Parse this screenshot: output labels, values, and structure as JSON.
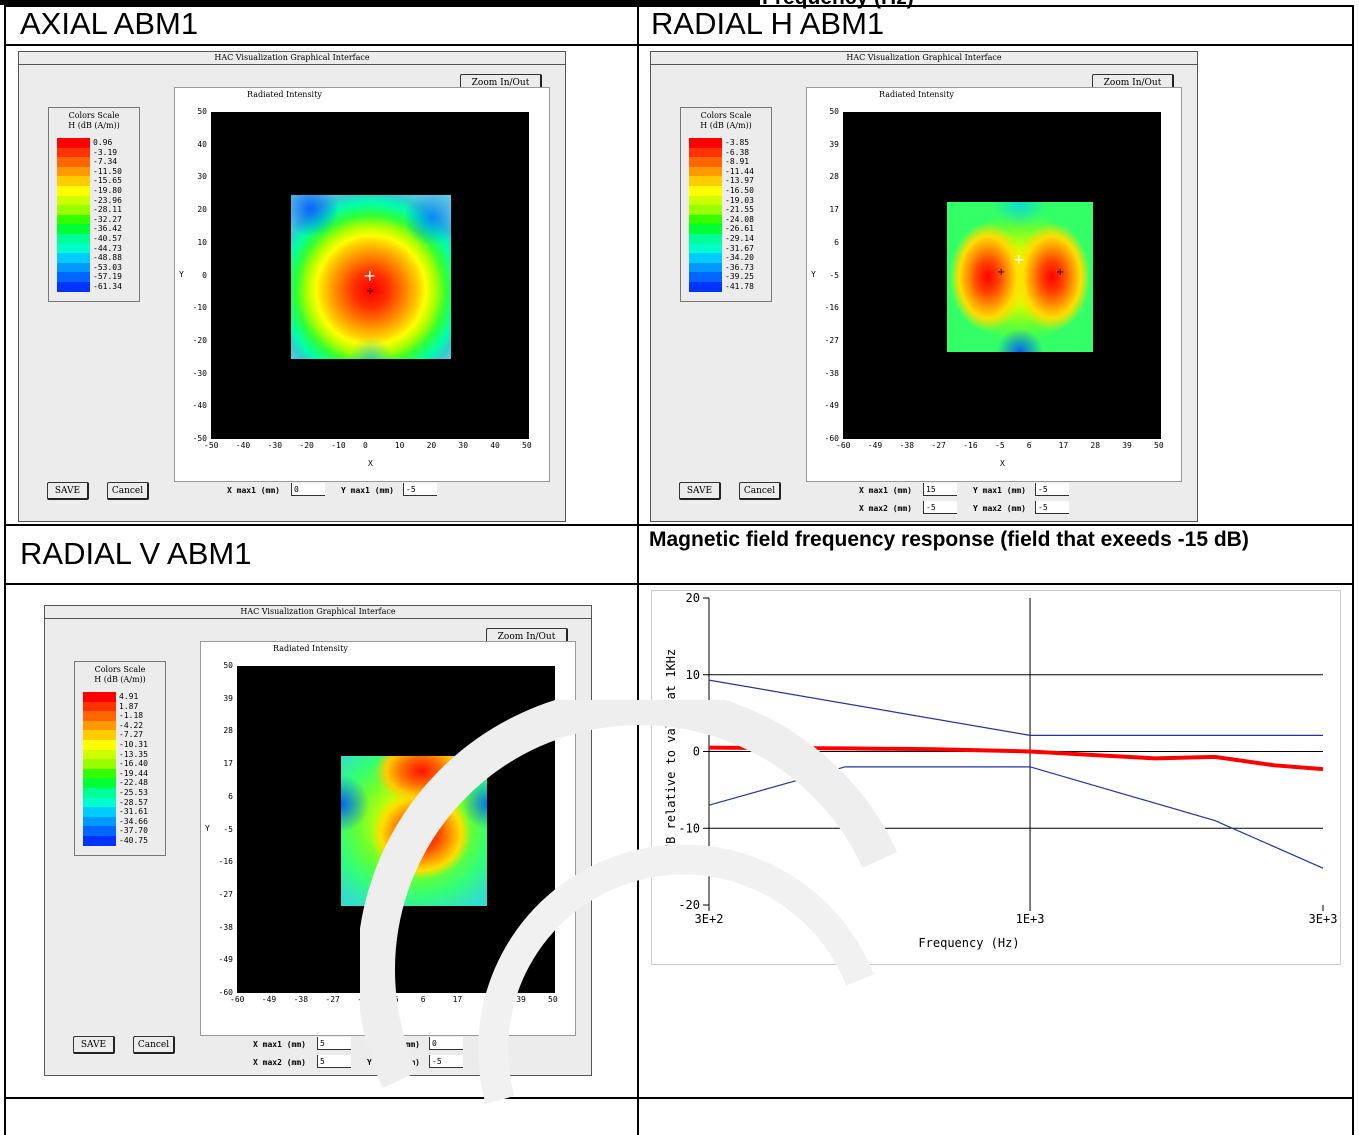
{
  "page": {
    "top_banner": "Frequency (Hz) "
  },
  "cells": {
    "axial_title": "AXIAL ABM1",
    "radial_h_title": "RADIAL H ABM1",
    "radial_v_title": "RADIAL V ABM1",
    "freq_title": "Magnetic field frequency response (field that exeeds -15 dB)"
  },
  "hac_window": {
    "title": "HAC Visualization Graphical Interface",
    "zoom_label": "Zoom In/Out",
    "plot_title": "Radiated Intensity",
    "legend_title": "Colors Scale",
    "legend_unit": "H (dB (A/m))",
    "x_axis_label": "X",
    "y_axis_label": "Y",
    "save_label": "SAVE",
    "cancel_label": "Cancel",
    "x_max1_label": "X max1 (mm)",
    "y_max1_label": "Y max1 (mm)",
    "x_max2_label": "X max2 (mm)",
    "y_max2_label": "Y max2 (mm)"
  },
  "axial": {
    "legend": [
      "0.96",
      "-3.19",
      "-7.34",
      "-11.50",
      "-15.65",
      "-19.80",
      "-23.96",
      "-28.11",
      "-32.27",
      "-36.42",
      "-40.57",
      "-44.73",
      "-48.88",
      "-53.03",
      "-57.19",
      "-61.34"
    ],
    "x_ticks": [
      "-50",
      "-40",
      "-30",
      "-20",
      "-10",
      "0",
      "10",
      "20",
      "30",
      "40",
      "50"
    ],
    "y_ticks": [
      "50",
      "40",
      "30",
      "20",
      "10",
      "0",
      "-10",
      "-20",
      "-30",
      "-40",
      "-50"
    ],
    "x_max1": "0",
    "y_max1": "-5"
  },
  "radial_h": {
    "legend": [
      "-3.85",
      "-6.38",
      "-8.91",
      "-11.44",
      "-13.97",
      "-16.50",
      "-19.03",
      "-21.55",
      "-24.08",
      "-26.61",
      "-29.14",
      "-31.67",
      "-34.20",
      "-36.73",
      "-39.25",
      "-41.78"
    ],
    "x_ticks": [
      "-60",
      "-49",
      "-38",
      "-27",
      "-16",
      "-5",
      "6",
      "17",
      "28",
      "39",
      "50"
    ],
    "y_ticks": [
      "50",
      "39",
      "28",
      "17",
      "6",
      "-5",
      "-16",
      "-27",
      "-38",
      "-49",
      "-60"
    ],
    "x_max1": "15",
    "y_max1": "-5",
    "x_max2": "-5",
    "y_max2": "-5"
  },
  "radial_v": {
    "legend": [
      "4.91",
      "1.87",
      "-1.18",
      "-4.22",
      "-7.27",
      "-10.31",
      "-13.35",
      "-16.40",
      "-19.44",
      "-22.48",
      "-25.53",
      "-28.57",
      "-31.61",
      "-34.66",
      "-37.70",
      "-40.75"
    ],
    "x_ticks": [
      "-60",
      "-49",
      "-38",
      "-27",
      "-16",
      "-5",
      "6",
      "17",
      "28",
      "39",
      "50"
    ],
    "y_ticks": [
      "50",
      "39",
      "28",
      "17",
      "6",
      "-5",
      "-16",
      "-27",
      "-38",
      "-49",
      "-60"
    ],
    "x_max1": "5",
    "y_max1": "0",
    "x_max2": "5",
    "y_max2": "-5"
  },
  "legend_colors": [
    "#ff0000",
    "#ff3300",
    "#ff6600",
    "#ff9900",
    "#ffcc00",
    "#ffff00",
    "#ccff00",
    "#99ff00",
    "#33ff00",
    "#00ff33",
    "#00ff99",
    "#00ffcc",
    "#00ccff",
    "#0099ff",
    "#0066ff",
    "#0033ff"
  ],
  "chart_data": {
    "type": "line",
    "title": "",
    "xlabel": "Frequency (Hz)",
    "ylabel": "dB relative to value at 1KHz",
    "x_scale": "log",
    "x_ticks": [
      "3E+2",
      "1E+3",
      "3E+3"
    ],
    "y_ticks": [
      "20",
      "10",
      "0",
      "-10",
      "-20"
    ],
    "ylim": [
      -20,
      20
    ],
    "xlim": [
      300,
      3000
    ],
    "grid": true,
    "series": [
      {
        "color": "#2233aa",
        "x": [
          300,
          1000,
          3000
        ],
        "y": [
          9.3,
          2.1,
          2.1
        ]
      },
      {
        "color": "#2233aa",
        "x": [
          300,
          500,
          1000,
          2000,
          3000
        ],
        "y": [
          -7.0,
          -2.0,
          -2.0,
          -9.0,
          -15.2
        ]
      },
      {
        "color": "#ff0000",
        "x": [
          300,
          500,
          700,
          1000,
          1300,
          1600,
          2000,
          2500,
          3000
        ],
        "y": [
          0.5,
          0.4,
          0.3,
          0.0,
          -0.5,
          -0.9,
          -0.7,
          -1.8,
          -2.3
        ]
      }
    ]
  }
}
